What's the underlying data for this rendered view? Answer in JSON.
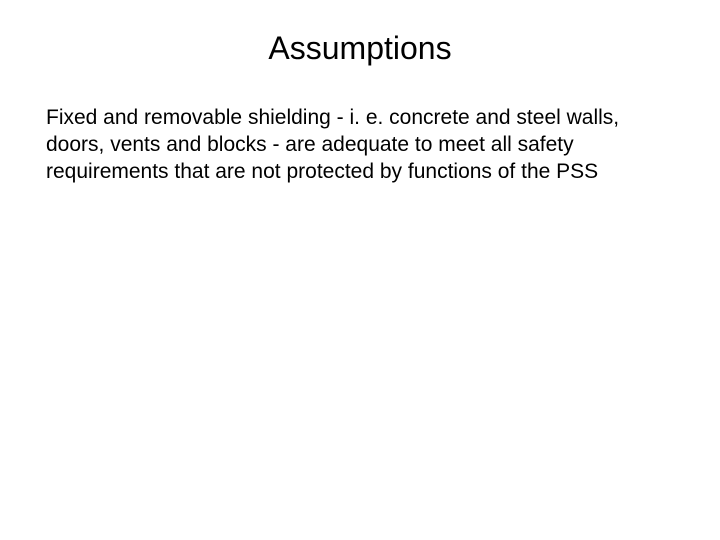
{
  "slide": {
    "title": "Assumptions",
    "body": "Fixed and removable shielding - i. e. concrete and steel walls, doors, vents and blocks - are adequate to meet all safety requirements that are not protected by functions of the PSS",
    "title_fontsize": 32,
    "body_fontsize": 21,
    "text_color": "#000000",
    "background_color": "#ffffff",
    "font_family": "Arial"
  }
}
